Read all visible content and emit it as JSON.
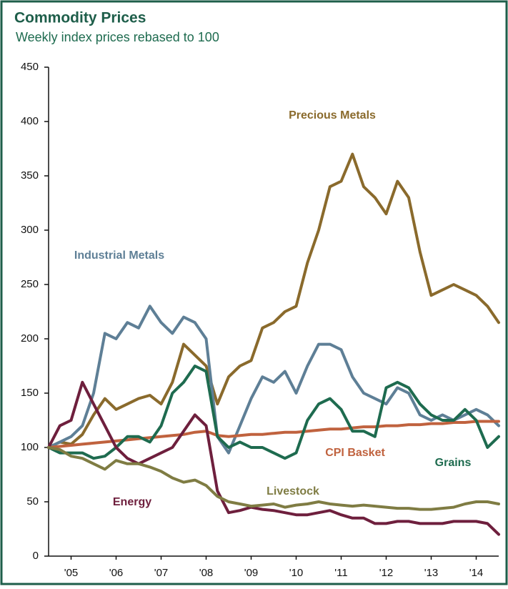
{
  "chart_data": {
    "type": "line",
    "title": "Commodity Prices",
    "subtitle": "Weekly index prices rebased to 100",
    "x": [
      2005,
      2005.25,
      2005.5,
      2005.75,
      2006,
      2006.25,
      2006.5,
      2006.75,
      2007,
      2007.25,
      2007.5,
      2007.75,
      2008,
      2008.25,
      2008.5,
      2008.75,
      2009,
      2009.25,
      2009.5,
      2009.75,
      2010,
      2010.25,
      2010.5,
      2010.75,
      2011,
      2011.25,
      2011.5,
      2011.75,
      2012,
      2012.25,
      2012.5,
      2012.75,
      2013,
      2013.25,
      2013.5,
      2013.75,
      2014,
      2014.25,
      2014.5,
      2014.75,
      2015
    ],
    "xlim": [
      2005,
      2015
    ],
    "xticks": [
      {
        "value": 2005.5,
        "label": "'05"
      },
      {
        "value": 2006.5,
        "label": "'06"
      },
      {
        "value": 2007.5,
        "label": "'07"
      },
      {
        "value": 2008.5,
        "label": "'08"
      },
      {
        "value": 2009.5,
        "label": "'09"
      },
      {
        "value": 2010.5,
        "label": "'10"
      },
      {
        "value": 2011.5,
        "label": "'11"
      },
      {
        "value": 2012.5,
        "label": "'12"
      },
      {
        "value": 2013.5,
        "label": "'13"
      },
      {
        "value": 2014.5,
        "label": "'14"
      }
    ],
    "ylim": [
      0,
      450
    ],
    "yticks": [
      0,
      50,
      100,
      150,
      200,
      250,
      300,
      350,
      400,
      450
    ],
    "grid": false,
    "series": [
      {
        "name": "Precious Metals",
        "color": "#8a6a2c",
        "values": [
          100,
          105,
          103,
          112,
          130,
          145,
          135,
          140,
          145,
          148,
          140,
          160,
          195,
          185,
          175,
          140,
          165,
          175,
          180,
          210,
          215,
          225,
          230,
          270,
          300,
          340,
          345,
          370,
          340,
          330,
          315,
          345,
          330,
          280,
          240,
          245,
          250,
          245,
          240,
          230,
          215
        ]
      },
      {
        "name": "Industrial Metals",
        "color": "#5e7f96",
        "values": [
          100,
          105,
          110,
          120,
          150,
          205,
          200,
          215,
          210,
          230,
          215,
          205,
          220,
          215,
          200,
          110,
          95,
          120,
          145,
          165,
          160,
          170,
          150,
          175,
          195,
          195,
          190,
          165,
          150,
          145,
          140,
          155,
          150,
          130,
          125,
          130,
          125,
          130,
          135,
          130,
          120
        ]
      },
      {
        "name": "CPI Basket",
        "color": "#c0623e",
        "values": [
          100,
          101,
          102,
          103,
          104,
          105,
          106,
          107,
          108,
          109,
          110,
          111,
          112,
          114,
          115,
          111,
          110,
          111,
          112,
          112,
          113,
          114,
          114,
          115,
          116,
          117,
          117,
          118,
          119,
          119,
          120,
          120,
          121,
          121,
          122,
          122,
          123,
          123,
          124,
          124,
          124
        ]
      },
      {
        "name": "Grains",
        "color": "#1e6b4f",
        "values": [
          100,
          95,
          95,
          95,
          90,
          92,
          100,
          110,
          110,
          105,
          120,
          150,
          160,
          175,
          170,
          110,
          100,
          105,
          100,
          100,
          95,
          90,
          95,
          125,
          140,
          145,
          135,
          115,
          115,
          110,
          155,
          160,
          155,
          140,
          130,
          125,
          125,
          135,
          125,
          100,
          110
        ]
      },
      {
        "name": "Energy",
        "color": "#6e1f3d",
        "values": [
          100,
          120,
          125,
          160,
          140,
          120,
          100,
          90,
          85,
          90,
          95,
          100,
          115,
          130,
          120,
          60,
          40,
          42,
          45,
          43,
          42,
          40,
          38,
          38,
          40,
          42,
          38,
          35,
          35,
          30,
          30,
          32,
          32,
          30,
          30,
          30,
          32,
          32,
          32,
          30,
          20
        ]
      },
      {
        "name": "Livestock",
        "color": "#7f7c43",
        "values": [
          100,
          98,
          92,
          90,
          85,
          80,
          88,
          85,
          85,
          82,
          78,
          72,
          68,
          70,
          65,
          55,
          50,
          48,
          46,
          47,
          48,
          45,
          47,
          48,
          50,
          48,
          47,
          46,
          47,
          46,
          45,
          44,
          44,
          43,
          43,
          44,
          45,
          48,
          50,
          50,
          48
        ]
      }
    ]
  }
}
